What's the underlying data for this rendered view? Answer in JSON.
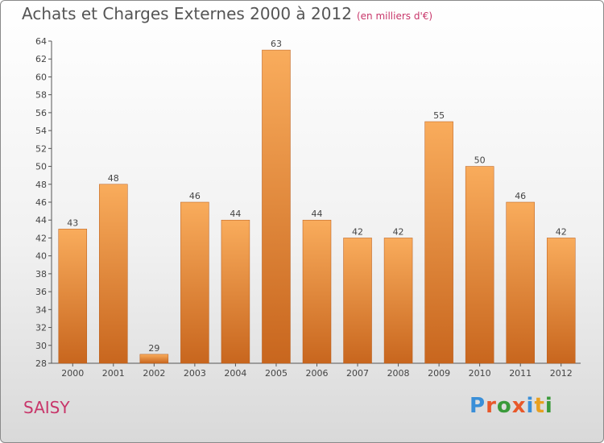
{
  "header": {
    "title": "Achats et Charges Externes 2000 à 2012",
    "subtitle": "(en milliers d'€)"
  },
  "footer": {
    "commune": "SAISY",
    "logo_text": "Proxiti"
  },
  "colors": {
    "bar_light": "#f8a858",
    "bar_dark": "#c8661e",
    "title": "#555555",
    "accent": "#c8366a"
  },
  "chart_data": {
    "type": "bar",
    "title": "Achats et Charges Externes 2000 à 2012",
    "subtitle": "(en milliers d'€)",
    "categories": [
      "2000",
      "2001",
      "2002",
      "2003",
      "2004",
      "2005",
      "2006",
      "2007",
      "2008",
      "2009",
      "2010",
      "2011",
      "2012"
    ],
    "values": [
      43,
      48,
      29,
      46,
      44,
      63,
      44,
      42,
      42,
      55,
      50,
      46,
      42
    ],
    "ylim": [
      28,
      64
    ],
    "ytick_step": 2,
    "grid": false,
    "legend": "none"
  }
}
